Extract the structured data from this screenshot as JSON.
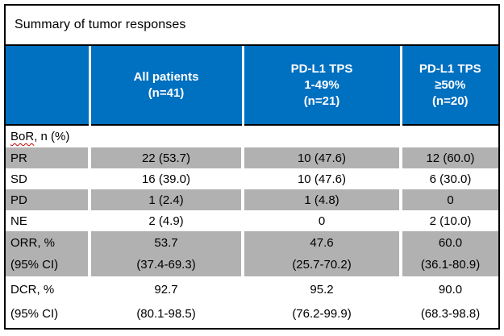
{
  "title": "Summary of tumor responses",
  "colors": {
    "header_bg": "#0070C0",
    "header_text": "#FFFFFF",
    "shaded_row_bg": "#B1B1B1",
    "border": "#000000",
    "spellcheck_squiggle": "#CC0000"
  },
  "header": {
    "blank": "",
    "all_patients_lines": [
      "All patients",
      "(n=41)"
    ],
    "pdl1_1_49_lines": [
      "PD-L1 TPS",
      "1-49%",
      "(n=21)"
    ],
    "pdl1_50plus_lines": [
      "PD-L1 TPS",
      "≥50%",
      "(n=20)"
    ]
  },
  "rows": {
    "bor": {
      "word": "BoR",
      "rest": ", n (%)"
    },
    "pr": {
      "label": "PR",
      "values": [
        "22 (53.7)",
        "10 (47.6)",
        "12 (60.0)"
      ]
    },
    "sd": {
      "label": "SD",
      "values": [
        "16 (39.0)",
        "10 (47.6)",
        "6 (30.0)"
      ]
    },
    "pd": {
      "label": "PD",
      "values": [
        "1 (2.4)",
        "1 (4.8)",
        "0"
      ]
    },
    "ne": {
      "label": "NE",
      "values": [
        "2 (4.9)",
        "0",
        "2 (10.0)"
      ]
    },
    "orr": {
      "label_lines": [
        "ORR, %",
        "(95% CI)"
      ],
      "values": [
        [
          "53.7",
          "(37.4-69.3)"
        ],
        [
          "47.6",
          "(25.7-70.2)"
        ],
        [
          "60.0",
          "(36.1-80.9)"
        ]
      ]
    },
    "dcr": {
      "label_lines": [
        "DCR, %",
        "(95% CI)"
      ],
      "values": [
        [
          "92.7",
          "(80.1-98.5)"
        ],
        [
          "95.2",
          "(76.2-99.9)"
        ],
        [
          "90.0",
          "(68.3-98.8)"
        ]
      ]
    }
  }
}
